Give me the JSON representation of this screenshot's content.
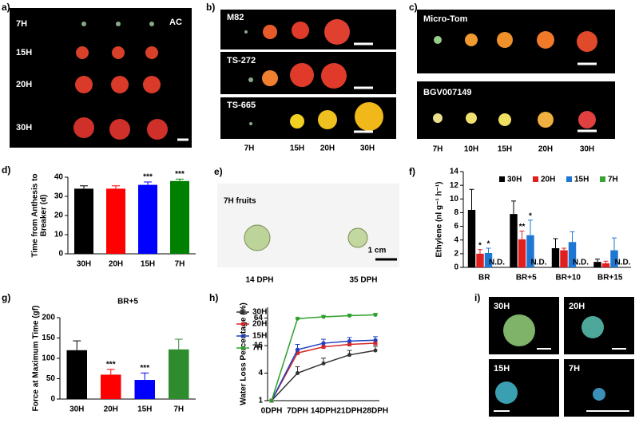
{
  "panels": {
    "a": {
      "label": "a)",
      "title": "AC",
      "rows": [
        "7H",
        "15H",
        "20H",
        "30H"
      ]
    },
    "b": {
      "label": "b)",
      "cultivars": [
        "M82",
        "TS-272",
        "TS-665"
      ],
      "stages": [
        "7H",
        "15H",
        "20H",
        "30H"
      ]
    },
    "c": {
      "label": "c)",
      "cultivars": [
        "Micro-Tom",
        "BGV007149"
      ],
      "stages": [
        "7H",
        "10H",
        "15H",
        "20H",
        "30H"
      ]
    },
    "e": {
      "label": "e)",
      "title": "7H fruits",
      "scale": "1 cm",
      "stages": [
        "14 DPH",
        "35 DPH"
      ]
    },
    "i": {
      "label": "i)",
      "stages": [
        "30H",
        "20H",
        "15H",
        "7H"
      ]
    }
  },
  "chart_data": [
    {
      "type": "bar",
      "panel_label": "d)",
      "ylabel": [
        "Time from Anthesis to",
        "Breaker (d)"
      ],
      "categories": [
        "30H",
        "20H",
        "15H",
        "7H"
      ],
      "values": [
        34,
        34,
        36,
        38
      ],
      "errors": [
        1.5,
        1.5,
        1.5,
        1
      ],
      "colors": [
        "#000000",
        "#ff0000",
        "#0000ff",
        "#008000"
      ],
      "significance": [
        null,
        null,
        "***",
        "***"
      ],
      "ylim": [
        0,
        40
      ],
      "yticks": [
        0,
        10,
        20,
        30,
        40
      ]
    },
    {
      "type": "bar",
      "panel_label": "f)",
      "ylabel": [
        "Ethylene (nl g⁻¹ h⁻¹)"
      ],
      "categories": [
        "BR",
        "BR+5",
        "BR+10",
        "BR+15"
      ],
      "series": [
        {
          "name": "30H",
          "color": "#000000",
          "values": [
            8.4,
            7.8,
            2.8,
            0.8
          ],
          "errors": [
            3,
            1.9,
            1.4,
            0.4
          ],
          "significance": [
            null,
            null,
            null,
            null
          ]
        },
        {
          "name": "20H",
          "color": "#e02020",
          "values": [
            2.0,
            4.1,
            2.5,
            0.6
          ],
          "errors": [
            0.6,
            1.2,
            0.3,
            0.3
          ],
          "significance": [
            "*",
            "**",
            null,
            null
          ]
        },
        {
          "name": "15H",
          "color": "#1f77d4",
          "values": [
            2.1,
            4.7,
            3.7,
            2.5
          ],
          "errors": [
            0.7,
            2.2,
            1.5,
            1.8
          ],
          "significance": [
            "*",
            "*",
            null,
            null
          ]
        },
        {
          "name": "7H",
          "color": "#3aa335",
          "values": [
            null,
            null,
            null,
            null
          ],
          "value_labels": [
            "N.D.",
            "N.D.",
            "N.D.",
            "N.D."
          ]
        }
      ],
      "ylim": [
        0,
        14
      ],
      "yticks": [
        0,
        2,
        4,
        6,
        8,
        10,
        12,
        14
      ]
    },
    {
      "type": "bar",
      "panel_label": "g)",
      "title": "BR+5",
      "ylabel": [
        "Force at Maximum Time (gf)"
      ],
      "categories": [
        "30H",
        "20H",
        "15H",
        "7H"
      ],
      "values": [
        120,
        60,
        47,
        122
      ],
      "errors": [
        23,
        13,
        17,
        25
      ],
      "colors": [
        "#000000",
        "#ff0000",
        "#0000ff",
        "#2e8b2e"
      ],
      "significance": [
        null,
        "***",
        "***",
        null
      ],
      "ylim": [
        0,
        200
      ],
      "yticks": [
        0,
        50,
        100,
        150,
        200
      ]
    },
    {
      "type": "line",
      "panel_label": "h)",
      "ylabel": [
        "Water Loss Percentage (%)"
      ],
      "log_base": 2,
      "categories": [
        "0DPH",
        "7DPH",
        "14DPH",
        "21DPH",
        "28DPH"
      ],
      "series": [
        {
          "name": "30H",
          "color": "#333333",
          "values": [
            1,
            4,
            6.5,
            10,
            12.5
          ],
          "errors": [
            0,
            1.5,
            2,
            2.5,
            3
          ]
        },
        {
          "name": "20H",
          "color": "#d62728",
          "values": [
            1,
            11,
            15,
            17,
            18
          ],
          "errors": [
            0,
            2,
            3,
            3,
            3
          ]
        },
        {
          "name": "15H",
          "color": "#1f3fbf",
          "values": [
            1,
            13,
            18,
            20,
            21
          ],
          "errors": [
            0,
            4,
            4,
            4,
            4
          ]
        },
        {
          "name": "7H",
          "color": "#2ca02c",
          "values": [
            1,
            62,
            68,
            72,
            75
          ],
          "errors": [
            0,
            3,
            5,
            6,
            6
          ]
        }
      ],
      "ylim": [
        1,
        110
      ],
      "yticks": [
        1,
        4,
        16,
        64
      ]
    }
  ]
}
